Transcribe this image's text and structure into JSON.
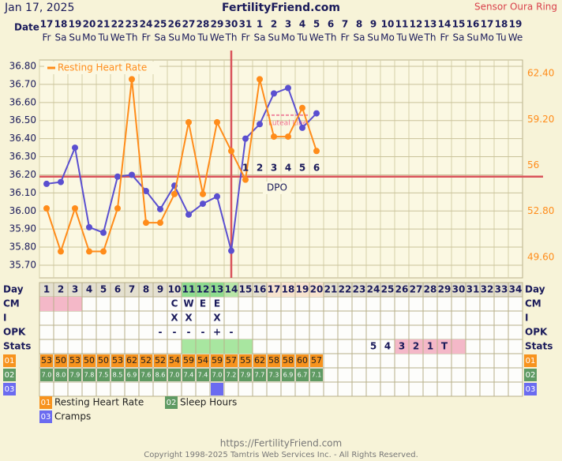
{
  "header": {
    "date": "Jan 17, 2025",
    "site": "FertilityFriend.com",
    "source": "Sensor Oura Ring",
    "date_label": "Date"
  },
  "dates": {
    "days": [
      "17",
      "18",
      "19",
      "20",
      "21",
      "22",
      "23",
      "24",
      "25",
      "26",
      "27",
      "28",
      "29",
      "30",
      "31",
      "1",
      "2",
      "3",
      "4",
      "5",
      "6",
      "7",
      "8",
      "9",
      "10",
      "11",
      "12",
      "13",
      "14",
      "15",
      "16",
      "17",
      "18",
      "19"
    ],
    "weekdays": [
      "Fr",
      "Sa",
      "Su",
      "Mo",
      "Tu",
      "We",
      "Th",
      "Fr",
      "Sa",
      "Su",
      "Mo",
      "Tu",
      "We",
      "Th",
      "Fr",
      "Sa",
      "Su",
      "Mo",
      "Tu",
      "We",
      "Th",
      "Fr",
      "Sa",
      "Su",
      "Mo",
      "Tu",
      "We",
      "Th",
      "Fr",
      "Sa",
      "Su",
      "Mo",
      "Tu",
      "We"
    ]
  },
  "chart_data": {
    "type": "line",
    "categories": [
      1,
      2,
      3,
      4,
      5,
      6,
      7,
      8,
      9,
      10,
      11,
      12,
      13,
      14,
      15,
      16,
      17,
      18,
      19,
      20,
      21,
      22,
      23,
      24,
      25,
      26,
      27,
      28,
      29,
      30,
      31,
      32,
      33,
      34
    ],
    "series": [
      {
        "color": "#5a4fd0",
        "values": [
          36.15,
          36.16,
          36.35,
          35.91,
          35.88,
          36.19,
          36.2,
          36.11,
          36.01,
          36.14,
          35.98,
          36.04,
          36.08,
          35.78,
          36.4,
          36.48,
          36.65,
          36.68,
          36.46,
          36.54,
          null,
          null,
          null,
          null,
          null,
          null,
          null,
          null,
          null,
          null,
          null,
          null,
          null,
          null
        ]
      },
      {
        "name": "Resting Heart Rate",
        "color": "#ff8c1a",
        "axis": "y2",
        "values": [
          53,
          50,
          53,
          50,
          50,
          53,
          62,
          52,
          52,
          54,
          59,
          54,
          59,
          57,
          55,
          62,
          58,
          58,
          60,
          57,
          null,
          null,
          null,
          null,
          null,
          null,
          null,
          null,
          null,
          null,
          null,
          null,
          null,
          null
        ]
      }
    ],
    "ylim": [
      35.63,
      36.835
    ],
    "yticks": [
      {
        "value": 35.7,
        "label": "35.70"
      },
      {
        "value": 35.8,
        "label": "35.80"
      },
      {
        "value": 35.9,
        "label": "35.90"
      },
      {
        "value": 36.0,
        "label": "36.00"
      },
      {
        "value": 36.1,
        "label": "36.10"
      },
      {
        "value": 36.2,
        "label": "36.20"
      },
      {
        "value": 36.3,
        "label": "36.30"
      },
      {
        "value": 36.4,
        "label": "36.40"
      },
      {
        "value": 36.5,
        "label": "36.50"
      },
      {
        "value": 36.6,
        "label": "36.60"
      },
      {
        "value": 36.7,
        "label": "36.70"
      },
      {
        "value": 36.8,
        "label": "36.80"
      }
    ],
    "y2lim": [
      48.16,
      63.34
    ],
    "y2ticks": [
      {
        "value": 49.6,
        "label": "49.60"
      },
      {
        "value": 52.8,
        "label": "52.80"
      },
      56,
      {
        "value": 59.2,
        "label": "59.20"
      },
      {
        "value": 62.4,
        "label": "62.40"
      }
    ],
    "grid": true,
    "coverline": 36.19,
    "ovulation_day": 14,
    "dpo": {
      "text": "DPO",
      "labels": [
        1,
        2,
        3,
        4,
        5,
        6
      ]
    },
    "luteal_line": {
      "label": "Luteal Line",
      "value": 36.53,
      "from_day": 16.5,
      "to_day": 19.5
    }
  },
  "table": {
    "row_labels": [
      "Day",
      "CM",
      "I",
      "OPK",
      "Stats"
    ],
    "cm": [
      {
        "day": 10,
        "text": "C"
      },
      {
        "day": 11,
        "text": "W"
      },
      {
        "day": 12,
        "text": "E"
      },
      {
        "day": 13,
        "text": "E"
      }
    ],
    "i": [
      {
        "day": 10,
        "text": "X"
      },
      {
        "day": 11,
        "text": "X"
      },
      {
        "day": 13,
        "text": "X"
      }
    ],
    "opk": [
      {
        "day": 9,
        "text": "-"
      },
      {
        "day": 10,
        "text": "-"
      },
      {
        "day": 11,
        "text": "-"
      },
      {
        "day": 12,
        "text": "-"
      },
      {
        "day": 13,
        "text": "+"
      },
      {
        "day": 14,
        "text": "-"
      }
    ],
    "stats": [
      {
        "day": 24,
        "text": "5"
      },
      {
        "day": 25,
        "text": "4"
      },
      {
        "day": 26,
        "text": "3"
      },
      {
        "day": 27,
        "text": "2"
      },
      {
        "day": 28,
        "text": "1"
      },
      {
        "day": 29,
        "text": "T"
      }
    ],
    "highlights": [
      {
        "row": 0,
        "from": 11,
        "to": 13,
        "color": "#8fdc8f"
      },
      {
        "row": 0,
        "from": 14,
        "to": 14,
        "color": "#b8e6a8"
      },
      {
        "row": 0,
        "from": 17,
        "to": 20,
        "color": "#f7e3cf"
      },
      {
        "row": 1,
        "from": 1,
        "to": 3,
        "color": "#f4b8c8"
      },
      {
        "row": 4,
        "from": 11,
        "to": 15,
        "color": "#a8e6a0"
      },
      {
        "row": 4,
        "from": 26,
        "to": 30,
        "color": "#f4b8c8"
      }
    ],
    "sleep_hours": {
      "values": [
        7,
        8,
        7.9,
        7.8,
        7.5,
        8.5,
        6.9,
        7.6,
        8.6,
        7,
        7.4,
        7.4,
        7,
        7.2,
        7.9,
        7.7,
        7.3,
        6.9,
        6.7,
        7.1
      ],
      "value_labels": [
        "7.0",
        "8.0",
        "7.9",
        "7.8",
        "7.5",
        "8.5",
        "6.9",
        "7.6",
        "8.6",
        "7.0",
        "7.4",
        "7.4",
        "7.0",
        "7.2",
        "7.9",
        "7.7",
        "7.3",
        "6.9",
        "6.7",
        "7.1"
      ]
    },
    "cramps_days": [
      13
    ],
    "codes": [
      {
        "code": "01",
        "name": "Resting Heart Rate",
        "color": "#f7931e"
      },
      {
        "code": "02",
        "name": "Sleep Hours",
        "color": "#5f9a63"
      },
      {
        "code": "03",
        "name": "Cramps",
        "color": "#6b6bf0"
      }
    ]
  },
  "footer": {
    "url": "https://FertilityFriend.com",
    "copyright": "Copyright 1998-2025 Tamtris Web Services Inc. - All Rights Reserved."
  }
}
